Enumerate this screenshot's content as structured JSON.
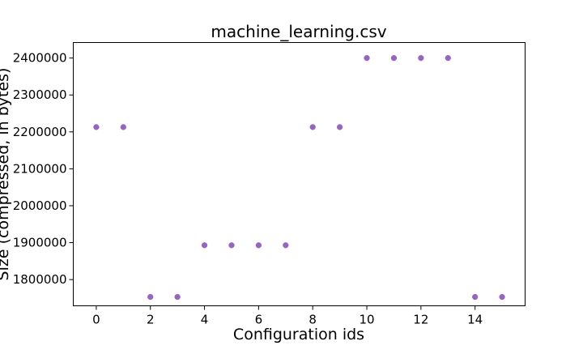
{
  "chart_data": {
    "type": "scatter",
    "title": "machine_learning.csv",
    "xlabel": "Configuration ids",
    "ylabel": "Size (compressed, in bytes)",
    "xlim": [
      -0.85,
      15.85
    ],
    "ylim": [
      1729000,
      2442000
    ],
    "xticks": [
      0,
      2,
      4,
      6,
      8,
      10,
      12,
      14
    ],
    "xtick_labels": [
      "0",
      "2",
      "4",
      "6",
      "8",
      "10",
      "12",
      "14"
    ],
    "yticks": [
      1800000,
      1900000,
      2000000,
      2100000,
      2200000,
      2300000,
      2400000
    ],
    "ytick_labels": [
      "1800000",
      "1900000",
      "2000000",
      "2100000",
      "2200000",
      "2300000",
      "2400000"
    ],
    "grid": false,
    "legend": "none",
    "marker_color": "#9467bd",
    "x": [
      0,
      1,
      2,
      3,
      4,
      5,
      6,
      7,
      8,
      9,
      10,
      11,
      12,
      13,
      14,
      15
    ],
    "y": [
      2213000,
      2213000,
      1753000,
      1753000,
      1893000,
      1893000,
      1893000,
      1893000,
      2213000,
      2213000,
      2400000,
      2400000,
      2400000,
      2400000,
      1753000,
      1753000
    ]
  }
}
